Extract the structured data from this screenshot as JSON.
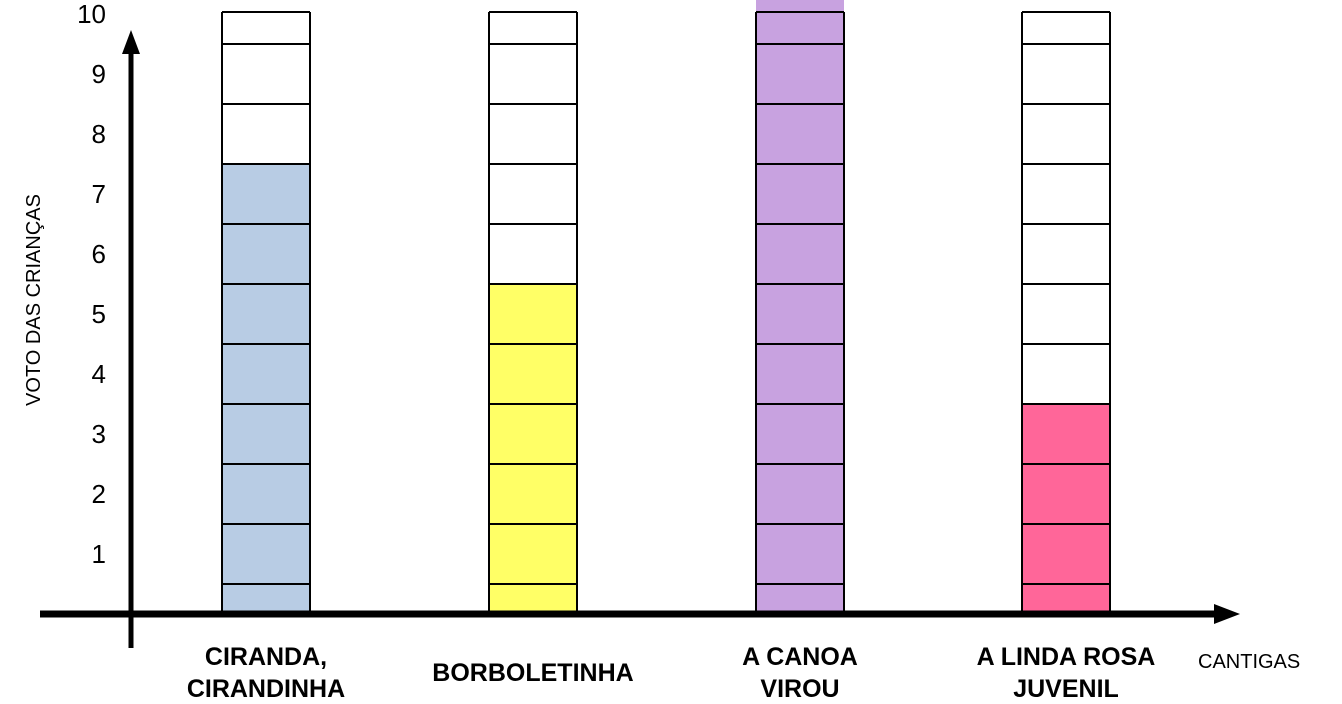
{
  "chart_data": {
    "type": "bar",
    "title": "",
    "categories": [
      [
        "CIRANDA,",
        "CIRANDINHA"
      ],
      [
        "BORBOLETINHA"
      ],
      [
        "A CANOA",
        "VIROU"
      ],
      [
        "A LINDA ROSA",
        "JUVENIL"
      ]
    ],
    "values": [
      7.5,
      5.5,
      10.5,
      3.5
    ],
    "colors": [
      "#b8cce4",
      "#ffff66",
      "#c8a2e0",
      "#ff6699"
    ],
    "ylabel": "VOTO DAS CRIANÇAS",
    "xlabel": "CANTIGAS",
    "yticks": [
      "1",
      "2",
      "3",
      "4",
      "5",
      "6",
      "7",
      "8",
      "9",
      "10"
    ],
    "ylim": [
      0,
      10.5
    ],
    "grid": false,
    "legend": "none"
  }
}
